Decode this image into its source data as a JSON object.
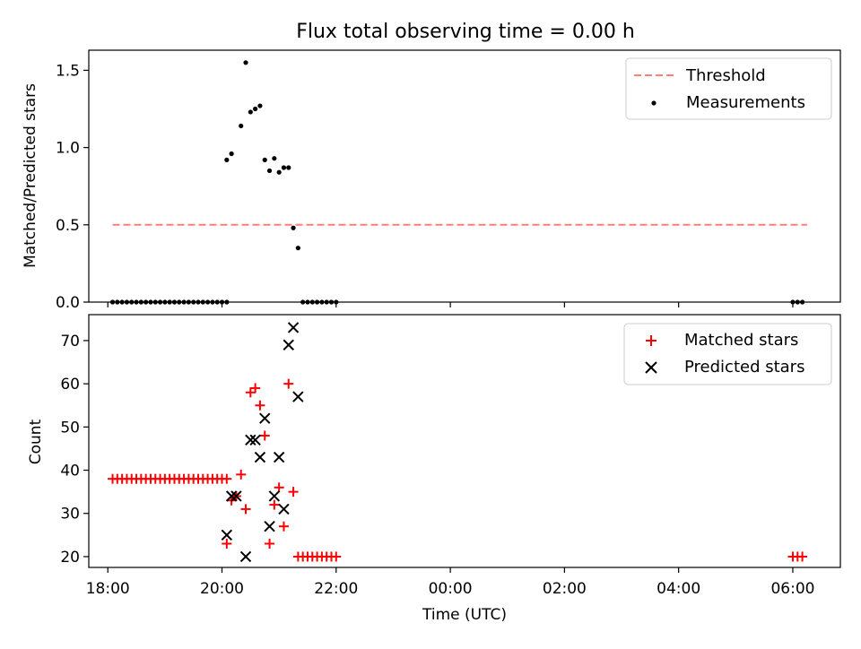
{
  "title": "Flux total observing time = 0.00 h",
  "chart_data": [
    {
      "type": "scatter",
      "ylabel": "Matched/Predicted stars",
      "xlabel": "",
      "x_range": [
        "17:40",
        "06:50"
      ],
      "ylim": [
        0.0,
        1.63
      ],
      "yticks": [
        0.0,
        0.5,
        1.0,
        1.5
      ],
      "ytick_labels": [
        "0.0",
        "0.5",
        "1.0",
        "1.5"
      ],
      "legend_position": "top-right",
      "threshold": {
        "name": "Threshold",
        "value": 0.5,
        "x_start": "18:05",
        "x_end": "06:15",
        "color": "#ff7f7f"
      },
      "series": [
        {
          "name": "Measurements",
          "color": "#000000",
          "points": [
            [
              "18:05",
              0.0
            ],
            [
              "18:10",
              0.0
            ],
            [
              "18:15",
              0.0
            ],
            [
              "18:20",
              0.0
            ],
            [
              "18:25",
              0.0
            ],
            [
              "18:30",
              0.0
            ],
            [
              "18:35",
              0.0
            ],
            [
              "18:40",
              0.0
            ],
            [
              "18:45",
              0.0
            ],
            [
              "18:50",
              0.0
            ],
            [
              "18:55",
              0.0
            ],
            [
              "19:00",
              0.0
            ],
            [
              "19:05",
              0.0
            ],
            [
              "19:10",
              0.0
            ],
            [
              "19:15",
              0.0
            ],
            [
              "19:20",
              0.0
            ],
            [
              "19:25",
              0.0
            ],
            [
              "19:30",
              0.0
            ],
            [
              "19:35",
              0.0
            ],
            [
              "19:40",
              0.0
            ],
            [
              "19:45",
              0.0
            ],
            [
              "19:50",
              0.0
            ],
            [
              "19:55",
              0.0
            ],
            [
              "20:00",
              0.0
            ],
            [
              "20:05",
              0.0
            ],
            [
              "20:05",
              0.92
            ],
            [
              "20:10",
              0.96
            ],
            [
              "20:20",
              1.14
            ],
            [
              "20:25",
              1.55
            ],
            [
              "20:30",
              1.23
            ],
            [
              "20:35",
              1.25
            ],
            [
              "20:40",
              1.27
            ],
            [
              "20:45",
              0.92
            ],
            [
              "20:50",
              0.85
            ],
            [
              "20:55",
              0.93
            ],
            [
              "21:00",
              0.84
            ],
            [
              "21:05",
              0.87
            ],
            [
              "21:10",
              0.87
            ],
            [
              "21:15",
              0.48
            ],
            [
              "21:20",
              0.35
            ],
            [
              "21:25",
              0.0
            ],
            [
              "21:30",
              0.0
            ],
            [
              "21:35",
              0.0
            ],
            [
              "21:40",
              0.0
            ],
            [
              "21:45",
              0.0
            ],
            [
              "21:50",
              0.0
            ],
            [
              "21:55",
              0.0
            ],
            [
              "22:00",
              0.0
            ],
            [
              "06:00",
              0.0
            ],
            [
              "06:05",
              0.0
            ],
            [
              "06:10",
              0.0
            ]
          ]
        }
      ]
    },
    {
      "type": "scatter",
      "ylabel": "Count",
      "xlabel": "Time (UTC)",
      "x_range": [
        "17:40",
        "06:50"
      ],
      "xticks": [
        "18:00",
        "20:00",
        "22:00",
        "00:00",
        "02:00",
        "04:00",
        "06:00"
      ],
      "ylim": [
        17.5,
        76
      ],
      "yticks": [
        20,
        30,
        40,
        50,
        60,
        70
      ],
      "ytick_labels": [
        "20",
        "30",
        "40",
        "50",
        "60",
        "70"
      ],
      "legend_position": "top-right",
      "series": [
        {
          "name": "Matched stars",
          "color": "#ff0000",
          "marker": "plus",
          "points": [
            [
              "18:05",
              38
            ],
            [
              "18:10",
              38
            ],
            [
              "18:15",
              38
            ],
            [
              "18:20",
              38
            ],
            [
              "18:25",
              38
            ],
            [
              "18:30",
              38
            ],
            [
              "18:35",
              38
            ],
            [
              "18:40",
              38
            ],
            [
              "18:45",
              38
            ],
            [
              "18:50",
              38
            ],
            [
              "18:55",
              38
            ],
            [
              "19:00",
              38
            ],
            [
              "19:05",
              38
            ],
            [
              "19:10",
              38
            ],
            [
              "19:15",
              38
            ],
            [
              "19:20",
              38
            ],
            [
              "19:25",
              38
            ],
            [
              "19:30",
              38
            ],
            [
              "19:35",
              38
            ],
            [
              "19:40",
              38
            ],
            [
              "19:45",
              38
            ],
            [
              "19:50",
              38
            ],
            [
              "19:55",
              38
            ],
            [
              "20:00",
              38
            ],
            [
              "20:05",
              38
            ],
            [
              "20:05",
              23
            ],
            [
              "20:10",
              33
            ],
            [
              "20:15",
              34
            ],
            [
              "20:20",
              39
            ],
            [
              "20:25",
              31
            ],
            [
              "20:30",
              58
            ],
            [
              "20:35",
              59
            ],
            [
              "20:40",
              55
            ],
            [
              "20:45",
              48
            ],
            [
              "20:50",
              23
            ],
            [
              "20:55",
              32
            ],
            [
              "21:00",
              36
            ],
            [
              "21:05",
              27
            ],
            [
              "21:10",
              60
            ],
            [
              "21:15",
              35
            ],
            [
              "21:20",
              20
            ],
            [
              "21:25",
              20
            ],
            [
              "21:30",
              20
            ],
            [
              "21:35",
              20
            ],
            [
              "21:40",
              20
            ],
            [
              "21:45",
              20
            ],
            [
              "21:50",
              20
            ],
            [
              "21:55",
              20
            ],
            [
              "22:00",
              20
            ],
            [
              "06:00",
              20
            ],
            [
              "06:05",
              20
            ],
            [
              "06:10",
              20
            ]
          ]
        },
        {
          "name": "Predicted stars",
          "color": "#000000",
          "marker": "x",
          "points": [
            [
              "20:05",
              25
            ],
            [
              "20:10",
              34
            ],
            [
              "20:15",
              34
            ],
            [
              "20:25",
              20
            ],
            [
              "20:30",
              47
            ],
            [
              "20:35",
              47
            ],
            [
              "20:40",
              43
            ],
            [
              "20:45",
              52
            ],
            [
              "20:50",
              27
            ],
            [
              "20:55",
              34
            ],
            [
              "21:00",
              43
            ],
            [
              "21:05",
              31
            ],
            [
              "21:10",
              69
            ],
            [
              "21:15",
              73
            ],
            [
              "21:20",
              57
            ]
          ]
        }
      ]
    }
  ]
}
